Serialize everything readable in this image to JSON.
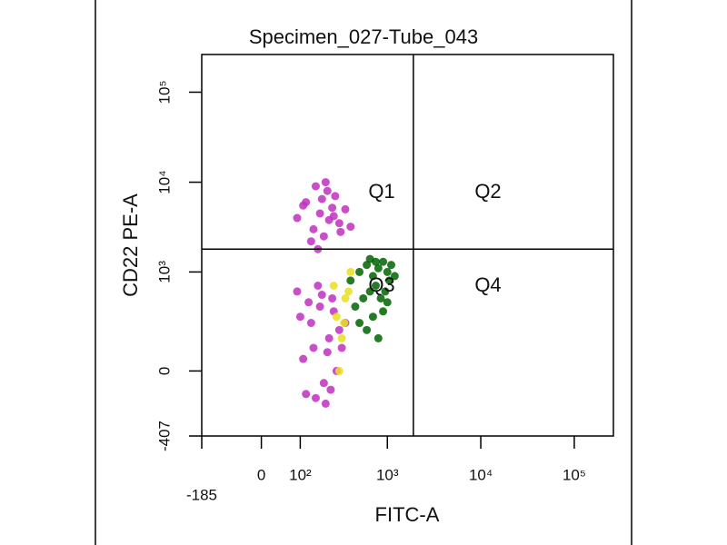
{
  "chart_data": {
    "type": "scatter",
    "title": "Specimen_027-Tube_043",
    "x_label": "FITC-A",
    "y_label": "CD22 PE-A",
    "xscale": "biexponential",
    "yscale": "biexponential",
    "xlim": [
      -185,
      262144
    ],
    "ylim": [
      -407,
      262144
    ],
    "xticks": [
      {
        "value": -185,
        "label": "-185"
      },
      0,
      {
        "value": 100,
        "label": "10²"
      },
      {
        "value": 1000,
        "label": "10³"
      },
      {
        "value": 10000,
        "label": "10⁴"
      },
      {
        "value": 100000,
        "label": "10⁵"
      }
    ],
    "yticks": [
      {
        "value": -407,
        "label": "-407"
      },
      0,
      {
        "value": 1000,
        "label": "10³"
      },
      {
        "value": 10000,
        "label": "10⁴"
      },
      {
        "value": 100000,
        "label": "10⁵"
      }
    ],
    "quadrant_x": 1900,
    "quadrant_y": 1800,
    "quadrant_labels": [
      "Q1",
      "Q2",
      "Q3",
      "Q4"
    ],
    "series": [
      {
        "color": "#c030c0",
        "x": [
          120,
          180,
          250,
          300,
          150,
          220,
          90,
          200,
          350,
          270,
          160,
          230,
          110,
          310,
          190,
          260,
          140,
          400,
          210,
          170
        ],
        "values": [
          6000,
          4500,
          5200,
          3500,
          3000,
          8000,
          4000,
          2500,
          5000,
          7000,
          9000,
          3800,
          5500,
          2800,
          6500,
          4200,
          2200,
          3200,
          10000,
          1800
        ]
      },
      {
        "color": "#c030c0",
        "x": [
          100,
          150,
          200,
          250,
          300,
          120,
          180,
          230,
          280,
          90,
          140,
          210,
          260,
          320,
          170,
          110,
          240,
          190,
          350,
          130,
          220,
          160
        ],
        "values": [
          300,
          100,
          -50,
          500,
          200,
          -100,
          400,
          150,
          0,
          600,
          250,
          -150,
          350,
          100,
          700,
          50,
          -80,
          550,
          250,
          450,
          80,
          -120
        ]
      },
      {
        "color": "#e8e020",
        "x": [
          280,
          320,
          350,
          300,
          380,
          260,
          340,
          400
        ],
        "values": [
          300,
          150,
          500,
          0,
          600,
          700,
          250,
          1000
        ]
      },
      {
        "color": "#006400",
        "x": [
          400,
          500,
          600,
          700,
          800,
          900,
          1000,
          1100,
          450,
          550,
          650,
          750,
          850,
          950,
          1050,
          1200,
          500,
          700,
          900,
          600,
          800,
          1000,
          650,
          750
        ],
        "values": [
          800,
          1000,
          1200,
          900,
          1100,
          1300,
          1000,
          1200,
          400,
          500,
          600,
          700,
          500,
          600,
          800,
          900,
          250,
          300,
          350,
          200,
          150,
          450,
          1400,
          1300
        ]
      }
    ]
  }
}
